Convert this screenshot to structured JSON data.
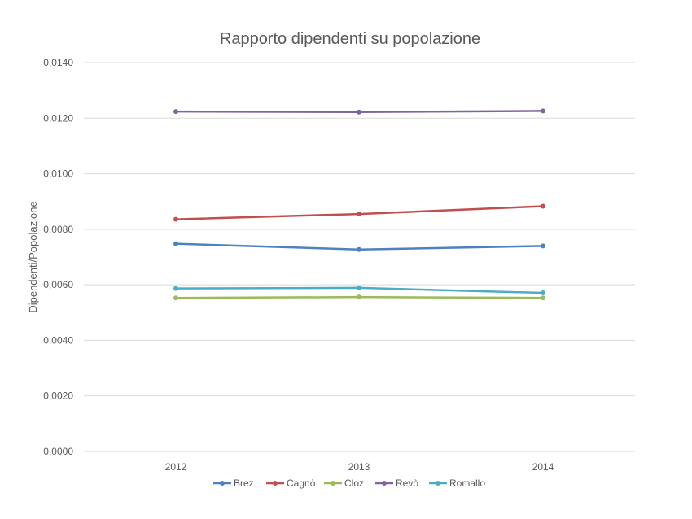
{
  "chart_data": {
    "type": "line",
    "title": "Rapporto dipendenti su popolazione",
    "xlabel": "",
    "ylabel": "Dipendenti/Popolazione",
    "x": [
      "2012",
      "2013",
      "2014"
    ],
    "ylim": [
      0,
      0.014
    ],
    "y_ticks": [
      "0,0000",
      "0,0020",
      "0,0040",
      "0,0060",
      "0,0080",
      "0,0100",
      "0,0120",
      "0,0140"
    ],
    "y_tick_values": [
      0,
      0.002,
      0.004,
      0.006,
      0.008,
      0.01,
      0.012,
      0.014
    ],
    "grid": true,
    "legend_position": "bottom",
    "series": [
      {
        "name": "Brez",
        "color": "#4f81bd",
        "values": [
          0.00748,
          0.00727,
          0.0074
        ]
      },
      {
        "name": "Cagnò",
        "color": "#c0504d",
        "values": [
          0.00836,
          0.00855,
          0.00883
        ]
      },
      {
        "name": "Cloz",
        "color": "#9bbb59",
        "values": [
          0.00553,
          0.00556,
          0.00553
        ]
      },
      {
        "name": "Revò",
        "color": "#8064a2",
        "values": [
          0.01224,
          0.01222,
          0.01226
        ]
      },
      {
        "name": "Romallo",
        "color": "#4bacc6",
        "values": [
          0.00587,
          0.00589,
          0.00571
        ]
      }
    ]
  }
}
